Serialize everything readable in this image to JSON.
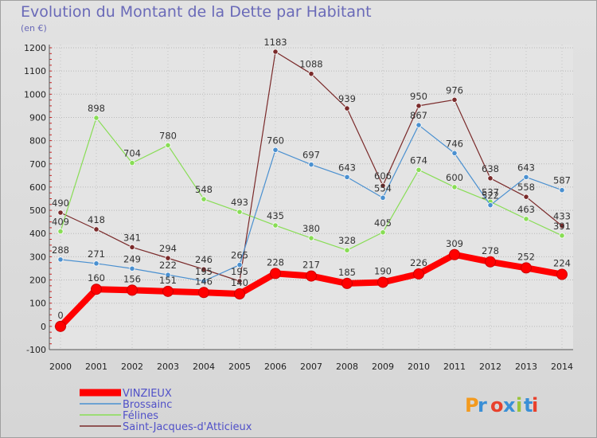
{
  "title": "Evolution du Montant de la Dette par Habitant",
  "unit": "(en €)",
  "logo": "Proxiti",
  "chart_data": {
    "type": "line",
    "title": "Evolution du Montant de la Dette par Habitant",
    "ylabel": "(en €)",
    "xlabel": "",
    "x": [
      "2000",
      "2001",
      "2002",
      "2003",
      "2004",
      "2005",
      "2006",
      "2007",
      "2008",
      "2009",
      "2010",
      "2011",
      "2012",
      "2013",
      "2014"
    ],
    "ylim": [
      -100,
      1200
    ],
    "yticks": [
      -100,
      0,
      100,
      200,
      300,
      400,
      500,
      600,
      700,
      800,
      900,
      1000,
      1100,
      1200
    ],
    "grid": "horizontal dotted",
    "legend_position": "bottom-left",
    "series": [
      {
        "name": "VINZIEUX",
        "color": "#ff0000",
        "values": [
          0,
          160,
          156,
          151,
          146,
          140,
          228,
          217,
          185,
          190,
          226,
          309,
          278,
          252,
          224
        ],
        "labels": [
          "0",
          "160",
          "156",
          "151",
          "146",
          "140",
          "228",
          "217",
          "185",
          "190",
          "226",
          "309",
          "278",
          "252",
          "224"
        ]
      },
      {
        "name": "Brossainc",
        "color": "#4a90d0",
        "values": [
          288,
          271,
          249,
          222,
          195,
          265,
          760,
          697,
          643,
          554,
          867,
          746,
          522,
          643,
          587
        ],
        "labels": [
          "288",
          "271",
          "249",
          "222",
          "195",
          "265",
          "760",
          "697",
          "643",
          "554",
          "867",
          "746",
          "522",
          "643",
          "587"
        ]
      },
      {
        "name": "Félines",
        "color": "#88dd55",
        "values": [
          409,
          898,
          704,
          780,
          548,
          493,
          435,
          380,
          328,
          405,
          674,
          600,
          537,
          463,
          391
        ],
        "labels": [
          "409",
          "898",
          "704",
          "780",
          "548",
          "493",
          "435",
          "380",
          "328",
          "405",
          "674",
          "600",
          "537",
          "463",
          "391"
        ]
      },
      {
        "name": "Saint-Jacques-d'Atticieux",
        "color": "#7a2a2a",
        "values": [
          490,
          418,
          341,
          294,
          246,
          195,
          1183,
          1088,
          939,
          606,
          950,
          976,
          638,
          558,
          433
        ],
        "labels": [
          "490",
          "418",
          "341",
          "294",
          "246",
          "195",
          "1183",
          "1088",
          "939",
          "606",
          "950",
          "976",
          "638",
          "558",
          "433"
        ]
      }
    ]
  }
}
